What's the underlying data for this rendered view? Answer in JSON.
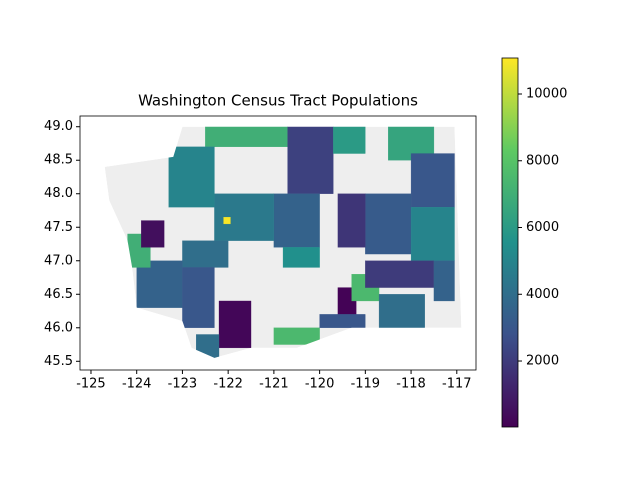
{
  "chart_data": {
    "type": "choropleth",
    "title": "Washington Census Tract Populations",
    "xlim": [
      -125.24,
      -116.58
    ],
    "ylim": [
      45.37,
      49.16
    ],
    "xticks": [
      -125,
      -124,
      -123,
      -122,
      -121,
      -120,
      -119,
      -118,
      -117
    ],
    "yticks": [
      {
        "value": 45.5,
        "label": "45.5"
      },
      {
        "value": 46,
        "label": "46.0"
      },
      {
        "value": 46.5,
        "label": "46.5"
      },
      {
        "value": 47,
        "label": "47.0"
      },
      {
        "value": 47.5,
        "label": "47.5"
      },
      {
        "value": 48,
        "label": "48.0"
      },
      {
        "value": 48.5,
        "label": "48.5"
      },
      {
        "value": 49,
        "label": "49.0"
      }
    ],
    "colormap": "viridis",
    "clim": [
      23,
      11079
    ],
    "colorbar_ticks": [
      2000,
      4000,
      6000,
      8000,
      10000
    ],
    "missing_color": "#eeeeee",
    "regions": [
      7000,
      2200,
      6000,
      6500,
      3000,
      3200,
      5000,
      1800,
      3500,
      4500,
      5000,
      4000,
      3500,
      7000,
      3000,
      200,
      7500,
      100,
      3000,
      7500,
      4000,
      2000,
      3500,
      500,
      11000,
      4000,
      5500
    ]
  }
}
